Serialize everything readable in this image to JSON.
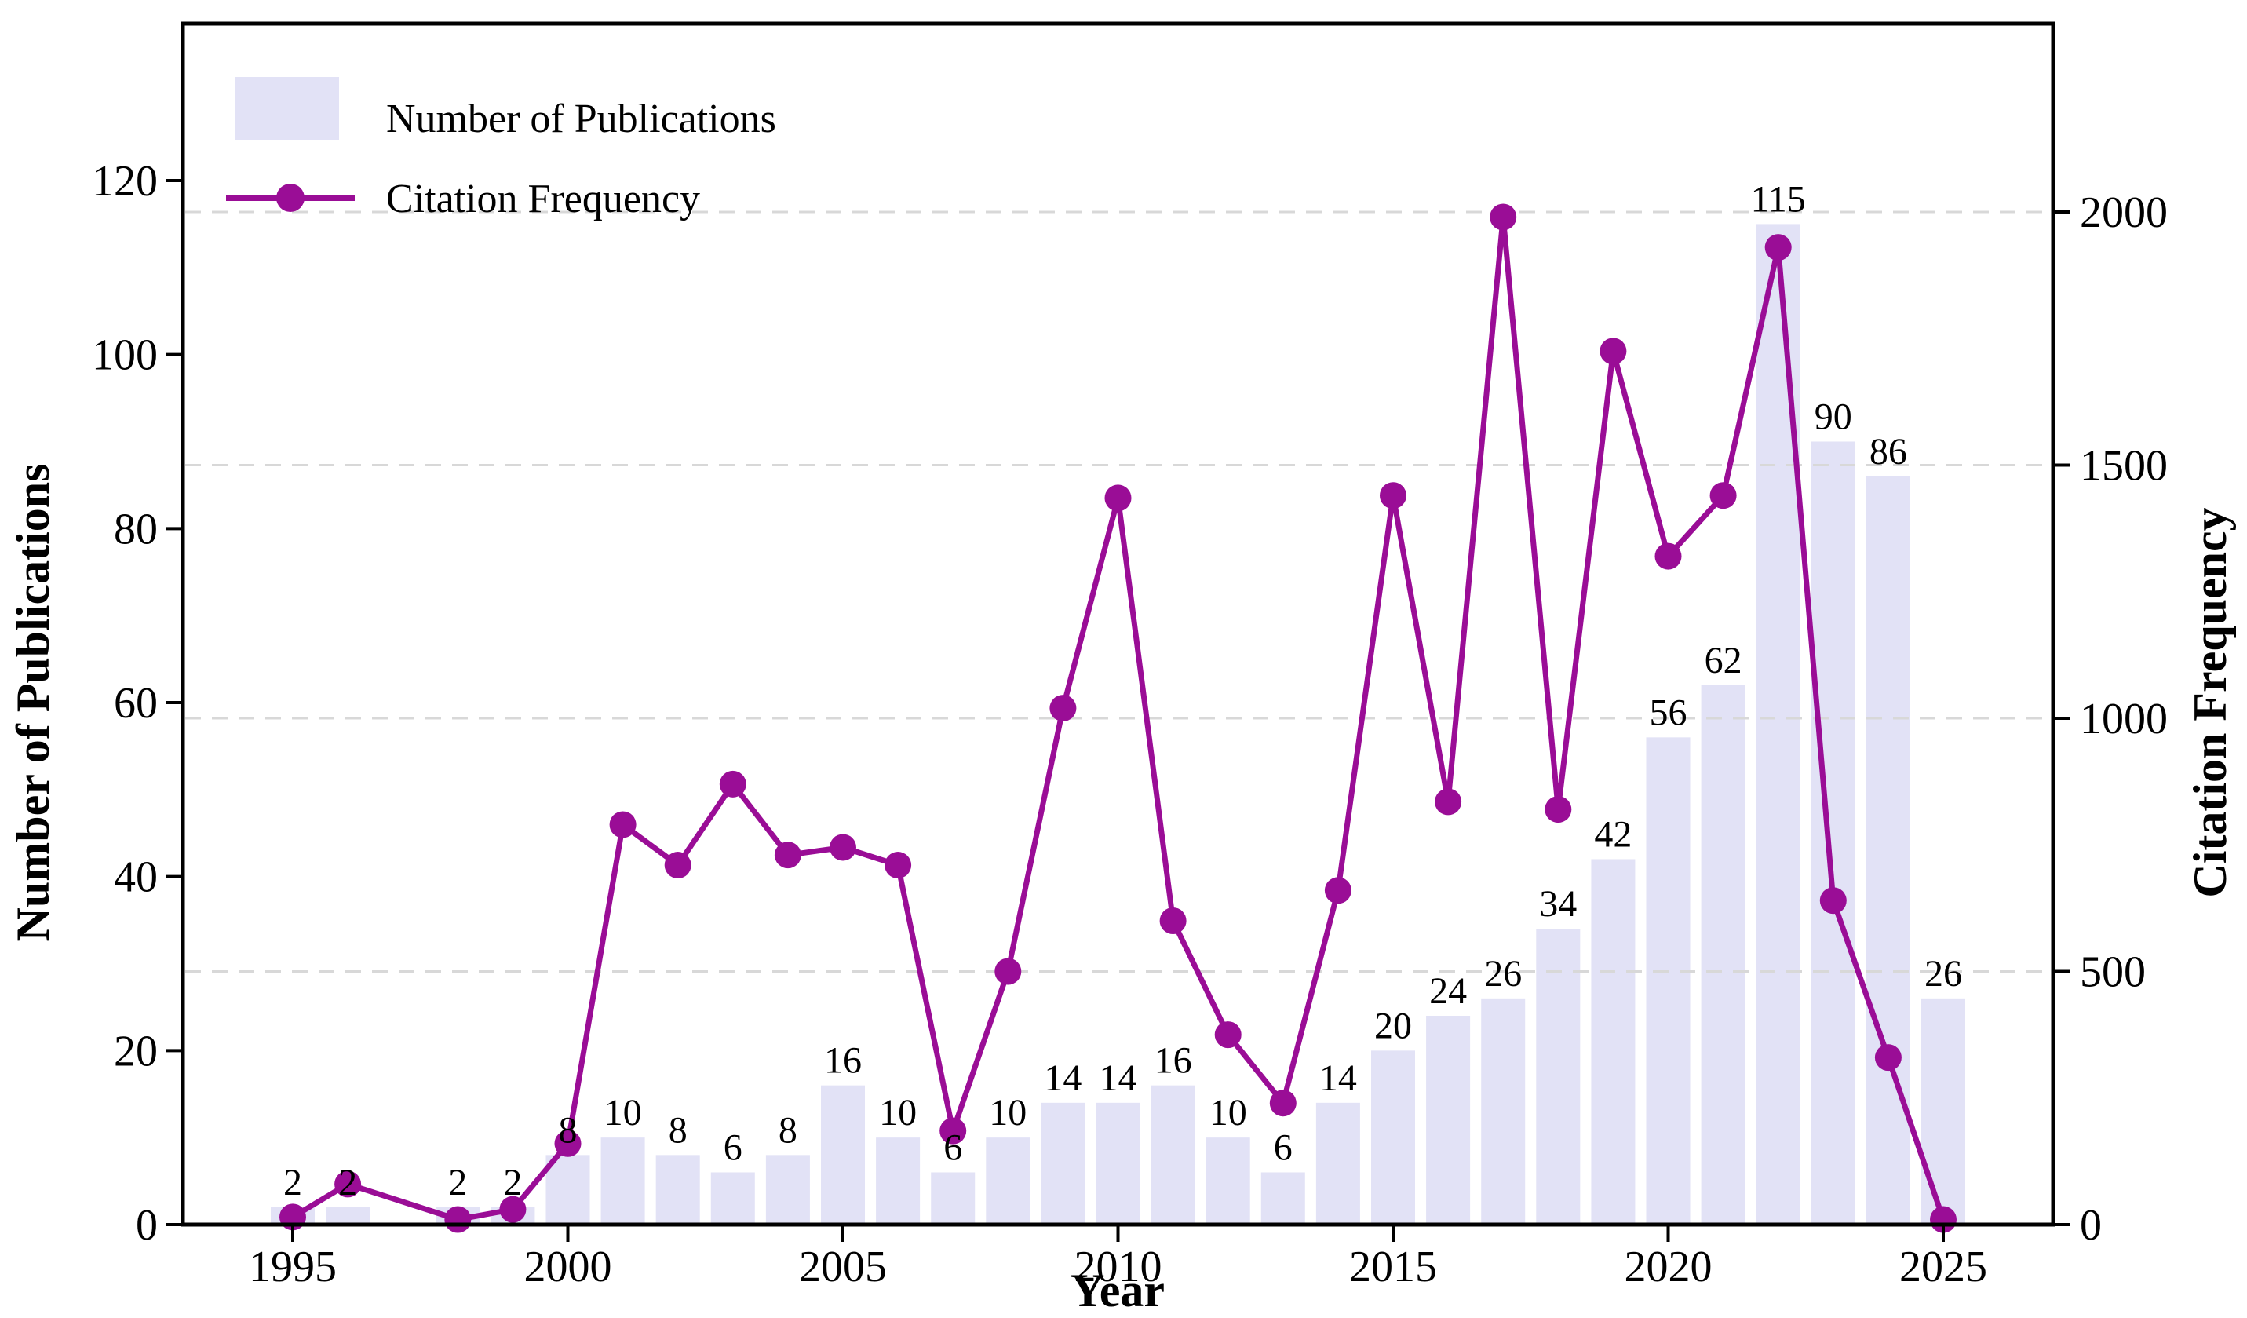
{
  "figure": {
    "background": "#ffffff",
    "legend": {
      "position": "upper-left",
      "items": [
        {
          "label": "Number of Publications",
          "marker": "bar-swatch",
          "color": "#e2e2f6"
        },
        {
          "label": "Citation Frequency",
          "marker": "line-with-dot",
          "color": "#9a0d96"
        }
      ]
    },
    "x_axis": {
      "label": "Year",
      "ticks": [
        1995,
        2000,
        2005,
        2010,
        2015,
        2020,
        2025
      ]
    },
    "y_left": {
      "label": "Number of Publications",
      "ticks": [
        0,
        20,
        40,
        60,
        80,
        100,
        120
      ]
    },
    "y_right": {
      "label": "Citation Frequency",
      "ticks": [
        0,
        500,
        1000,
        1500,
        2000
      ]
    },
    "colors": {
      "bar": "#e2e2f6",
      "line": "#9a0d96",
      "grid": "#d8d8d8",
      "spine": "#000000",
      "text": "#000000"
    }
  },
  "chart_data": {
    "type": "bar",
    "subtype": "dual-axis bar + line combo",
    "title": "",
    "xlabel": "Year",
    "ylabel_left": "Number of Publications",
    "ylabel_right": "Citation Frequency",
    "x": [
      1995,
      1996,
      1998,
      1999,
      2000,
      2001,
      2002,
      2003,
      2004,
      2005,
      2006,
      2007,
      2008,
      2009,
      2010,
      2011,
      2012,
      2013,
      2014,
      2015,
      2016,
      2017,
      2018,
      2019,
      2020,
      2021,
      2022,
      2023,
      2024,
      2025
    ],
    "years_without_data": [
      1997
    ],
    "series": [
      {
        "name": "Number of Publications",
        "type": "bar",
        "axis": "left",
        "values": [
          2,
          2,
          2,
          2,
          8,
          10,
          8,
          6,
          8,
          16,
          10,
          6,
          10,
          14,
          14,
          16,
          10,
          6,
          14,
          20,
          24,
          26,
          34,
          42,
          56,
          62,
          115,
          90,
          86,
          26
        ],
        "data_labels_shown": true
      },
      {
        "name": "Citation Frequency",
        "type": "line",
        "axis": "right",
        "values": [
          15,
          80,
          10,
          30,
          160,
          790,
          710,
          870,
          730,
          745,
          710,
          185,
          500,
          1020,
          1435,
          600,
          375,
          240,
          660,
          1440,
          835,
          1990,
          820,
          1725,
          1320,
          1440,
          1930,
          640,
          330,
          10
        ],
        "data_labels_shown": false
      }
    ],
    "xlim": [
      1993,
      2027
    ],
    "ylim_left": [
      0,
      138
    ],
    "ylim_right": [
      0,
      2385
    ],
    "grid": {
      "horizontal_dashed_at_right_ticks": [
        500,
        1000,
        1500,
        2000
      ]
    },
    "legend_position": "upper left"
  }
}
